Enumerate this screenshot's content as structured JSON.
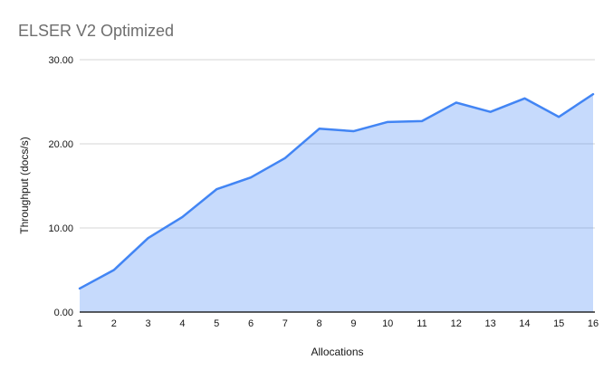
{
  "chart": {
    "title": "ELSER V2 Optimized",
    "x_axis_title": "Allocations",
    "y_axis_title": "Throughput (docs/s)"
  },
  "chart_data": {
    "type": "area",
    "title": "ELSER V2 Optimized",
    "xlabel": "Allocations",
    "ylabel": "Throughput (docs/s)",
    "x": [
      1,
      2,
      3,
      4,
      5,
      6,
      7,
      8,
      9,
      10,
      11,
      12,
      13,
      14,
      15,
      16
    ],
    "x_tick_labels": [
      "1",
      "2",
      "3",
      "4",
      "5",
      "6",
      "7",
      "8",
      "9",
      "10",
      "11",
      "12",
      "13",
      "14",
      "15",
      "16"
    ],
    "values": [
      2.8,
      5.0,
      8.8,
      11.3,
      14.6,
      16.0,
      18.3,
      21.8,
      21.5,
      22.6,
      22.7,
      24.9,
      23.8,
      25.4,
      23.2,
      25.9
    ],
    "ylim": [
      0,
      30
    ],
    "yticks": [
      {
        "value": 0,
        "label": "0.00"
      },
      {
        "value": 10,
        "label": "10.00"
      },
      {
        "value": 20,
        "label": "20.00"
      },
      {
        "value": 30,
        "label": "30.00"
      }
    ],
    "grid": true,
    "legend": "none",
    "colors": {
      "line": "#4285f4",
      "fill": "rgba(66,133,244,0.30)",
      "gridline": "#d5d5d5",
      "baseline": "#000000",
      "title_text": "#6e6e6e",
      "tick_text": "#161616"
    }
  }
}
